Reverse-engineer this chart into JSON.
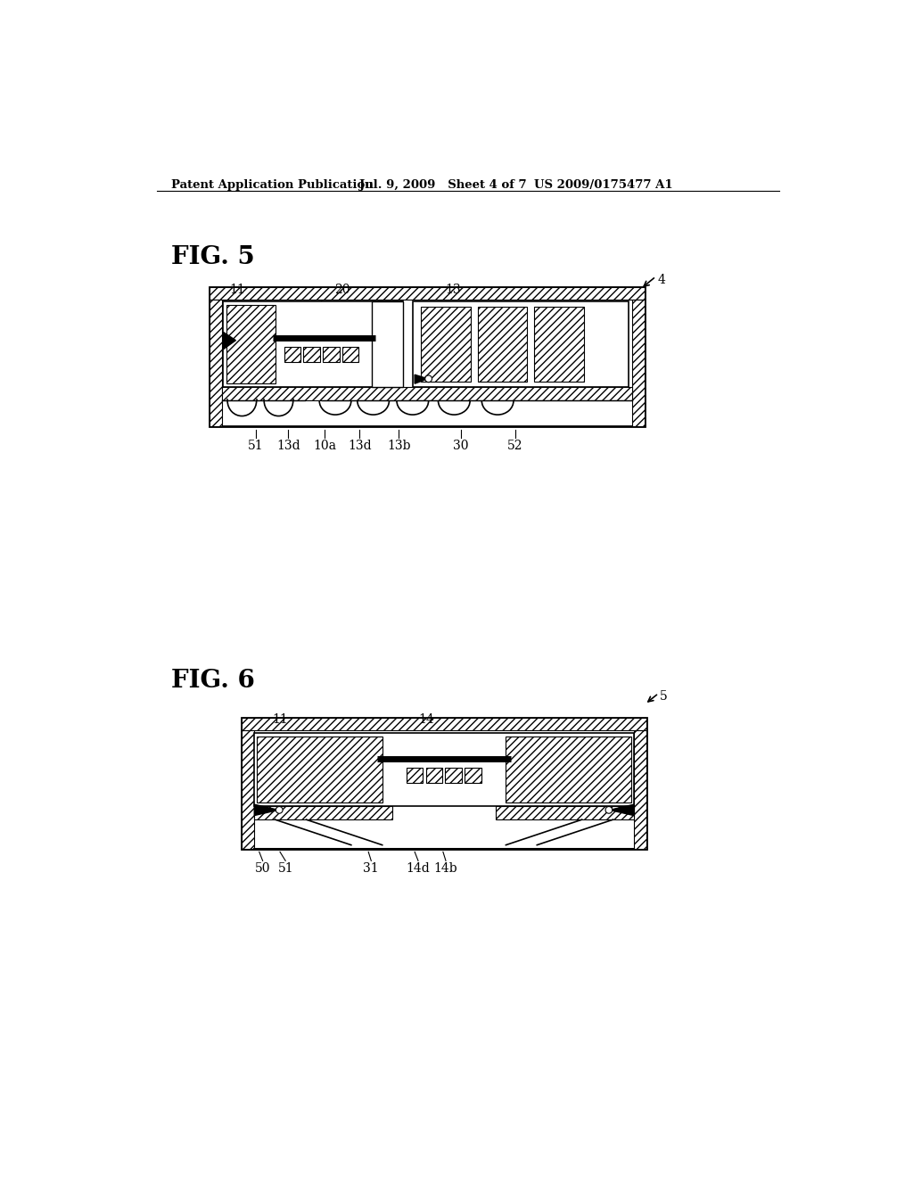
{
  "background_color": "#ffffff",
  "header_left": "Patent Application Publication",
  "header_mid": "Jul. 9, 2009   Sheet 4 of 7",
  "header_right": "US 2009/0175477 A1",
  "fig5_label": "FIG. 5",
  "fig6_label": "FIG. 6",
  "line_color": "#000000"
}
